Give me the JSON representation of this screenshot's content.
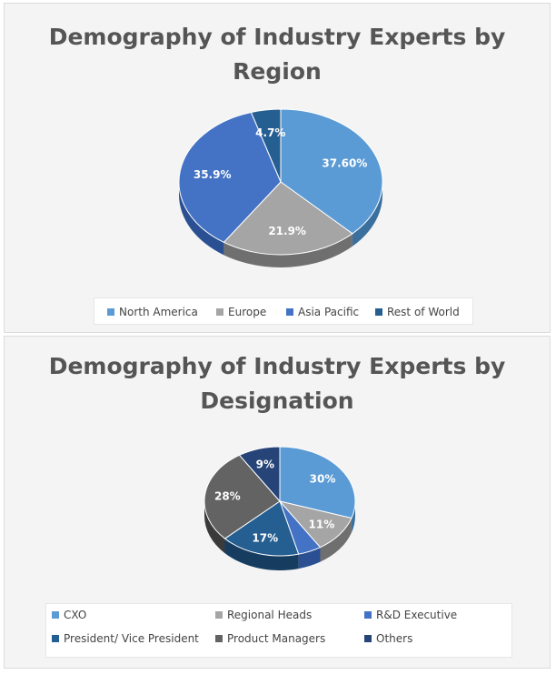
{
  "chart_data": [
    {
      "type": "pie",
      "title": "Demography of Industry Experts by Region",
      "title_lines": [
        "Demography of Industry Experts by",
        "Region"
      ],
      "categories": [
        "North America",
        "Europe",
        "Asia Pacific",
        "Rest of World"
      ],
      "values": [
        37.6,
        21.9,
        35.9,
        4.7
      ],
      "labels": [
        "37.60%",
        "21.9%",
        "35.9%",
        "4.7%"
      ],
      "colors": [
        "#5b9bd5",
        "#a5a5a5",
        "#4472c4",
        "#255e91"
      ],
      "side_colors": [
        "#3a6f9e",
        "#6f6f6f",
        "#2a4f92",
        "#163d60"
      ],
      "legend_position": "bottom"
    },
    {
      "type": "pie",
      "title": "Demography of Industry Experts by Designation",
      "title_lines": [
        "Demography of Industry Experts by",
        "Designation"
      ],
      "categories": [
        "CXO",
        "Regional Heads",
        "R&D Executive",
        "President/ Vice President",
        "Product Managers",
        "Others"
      ],
      "values": [
        30,
        11,
        5,
        17,
        28,
        9
      ],
      "labels": [
        "30%",
        "11%",
        "",
        "17%",
        "28%",
        "9%"
      ],
      "colors": [
        "#5b9bd5",
        "#a5a5a5",
        "#4472c4",
        "#255e91",
        "#636363",
        "#264478"
      ],
      "side_colors": [
        "#3a6f9e",
        "#6f6f6f",
        "#2a4f92",
        "#163d60",
        "#3a3a3a",
        "#16294a"
      ],
      "legend_position": "bottom"
    }
  ]
}
